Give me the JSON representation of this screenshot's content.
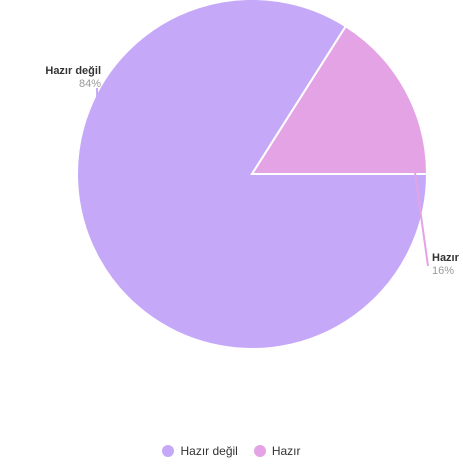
{
  "chart_data": {
    "type": "pie",
    "title": "",
    "slices": [
      {
        "label": "Hazır değil",
        "percent_label": "84%",
        "value": 84,
        "color": "#c5a8f8"
      },
      {
        "label": "Hazır",
        "percent_label": "16%",
        "value": 16,
        "color": "#e4a3e4"
      }
    ],
    "start_angle_deg": 0,
    "direction": "clockwise",
    "legend_position": "bottom"
  },
  "legend": {
    "items": [
      {
        "label": "Hazır değil",
        "color": "#c5a8f8"
      },
      {
        "label": "Hazır",
        "color": "#e4a3e4"
      }
    ]
  }
}
